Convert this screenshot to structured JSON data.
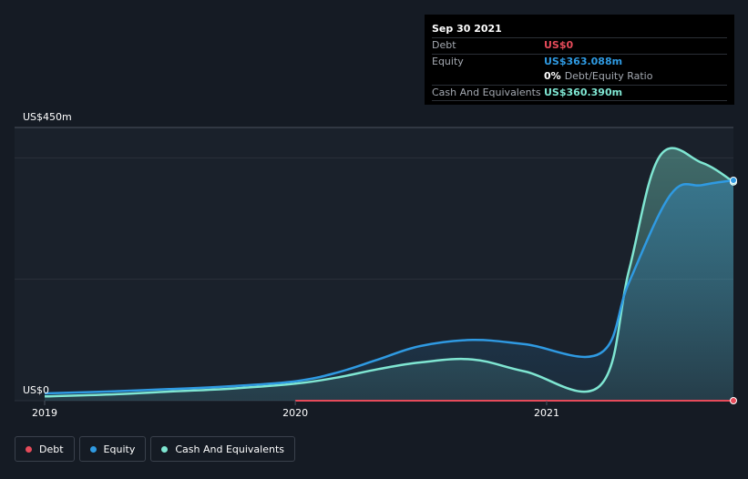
{
  "chart_data": {
    "type": "area",
    "y_axis": {
      "top_label": "US$450m",
      "bottom_label": "US$0",
      "ylim": [
        0,
        450
      ]
    },
    "x_axis": {
      "ticks": [
        "2019",
        "2020",
        "2021"
      ],
      "range": [
        "2019-01-01",
        "2021-09-30"
      ]
    },
    "series": [
      {
        "name": "Debt",
        "color": "#e64b5a",
        "points": [
          [
            "2020-01-01",
            0
          ],
          [
            "2021-09-30",
            0
          ]
        ]
      },
      {
        "name": "Equity",
        "color": "#2f9ae2",
        "points": [
          [
            "2019-01-01",
            12
          ],
          [
            "2019-04-01",
            15
          ],
          [
            "2019-07-01",
            19
          ],
          [
            "2019-10-01",
            24
          ],
          [
            "2020-01-01",
            32
          ],
          [
            "2020-03-01",
            46
          ],
          [
            "2020-05-01",
            68
          ],
          [
            "2020-07-01",
            90
          ],
          [
            "2020-09-15",
            100
          ],
          [
            "2020-12-01",
            93
          ],
          [
            "2021-03-20",
            78
          ],
          [
            "2021-05-01",
            195
          ],
          [
            "2021-07-01",
            340
          ],
          [
            "2021-08-15",
            355
          ],
          [
            "2021-09-30",
            363.088
          ]
        ]
      },
      {
        "name": "Cash And Equivalents",
        "color": "#7fe6d2",
        "points": [
          [
            "2019-01-01",
            7
          ],
          [
            "2019-04-01",
            10
          ],
          [
            "2019-07-01",
            15
          ],
          [
            "2019-10-01",
            20
          ],
          [
            "2020-01-01",
            28
          ],
          [
            "2020-03-01",
            38
          ],
          [
            "2020-05-01",
            52
          ],
          [
            "2020-07-01",
            63
          ],
          [
            "2020-09-15",
            68
          ],
          [
            "2020-12-01",
            48
          ],
          [
            "2021-03-20",
            25
          ],
          [
            "2021-05-01",
            215
          ],
          [
            "2021-06-15",
            403
          ],
          [
            "2021-08-15",
            392
          ],
          [
            "2021-09-30",
            360.39
          ]
        ]
      }
    ],
    "legend": {
      "placement": "bottom-left"
    },
    "grid": true
  },
  "tooltip": {
    "date": "Sep 30 2021",
    "rows": [
      {
        "label": "Debt",
        "value": "US$0",
        "color": "#e64b5a"
      },
      {
        "label": "Equity",
        "value": "US$363.088m",
        "color": "#2f9ae2"
      },
      {
        "label": "Cash And Equivalents",
        "value": "US$360.390m",
        "color": "#7fe6d2"
      }
    ],
    "ratio_value": "0%",
    "ratio_label": "Debt/Equity Ratio"
  },
  "legend": [
    {
      "label": "Debt",
      "color": "#e64b5a"
    },
    {
      "label": "Equity",
      "color": "#2f9ae2"
    },
    {
      "label": "Cash And Equivalents",
      "color": "#7fe6d2"
    }
  ]
}
